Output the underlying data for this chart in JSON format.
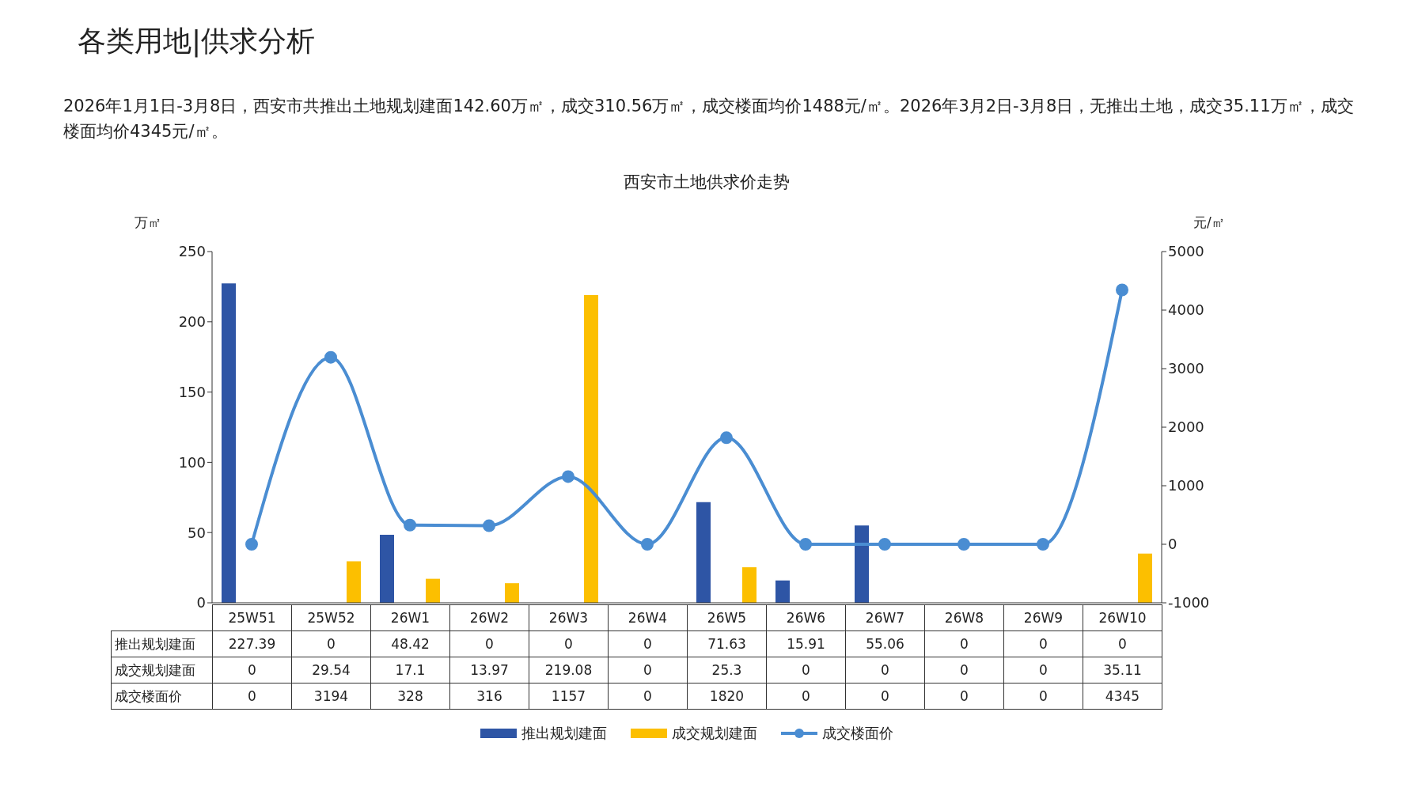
{
  "chart_data": {
    "type": "bar",
    "title": "各类用地|供求分析",
    "subtitle": "西安市土地供求价走势",
    "annotations": [
      "2026年1月1日-3月8日，西安市共推出土地规划建面142.60万㎡，成交310.56万㎡，成交楼面均价1488元/㎡。2026年3月2日-3月8日，无推出土地，成交35.11万㎡，成交楼面均价4345元/㎡。"
    ],
    "ylabel": "万㎡",
    "y2label": "元/㎡",
    "categories": [
      "25W51",
      "25W52",
      "26W1",
      "26W2",
      "26W3",
      "26W4",
      "26W5",
      "26W6",
      "26W7",
      "26W8",
      "26W9",
      "26W10"
    ],
    "series": [
      {
        "name": "推出规划建面",
        "color": "#2e55a5",
        "values": [
          227.39,
          0,
          48.42,
          0,
          0,
          0,
          71.63,
          15.91,
          55.06,
          0,
          0,
          0
        ]
      },
      {
        "name": "成交规划建面",
        "color": "#fcbf00",
        "values": [
          0,
          29.54,
          17.1,
          13.97,
          219.08,
          0,
          25.3,
          0,
          0,
          0,
          0,
          35.11
        ]
      },
      {
        "name": "成交楼面价",
        "type": "line",
        "axis": "y2",
        "color": "#4a8dd2",
        "marker": "circle",
        "values": [
          0,
          3194,
          328,
          316,
          1157,
          0,
          1820,
          0,
          0,
          0,
          0,
          4345
        ]
      }
    ],
    "ylim": [
      0,
      250
    ],
    "yticks": [
      0,
      50,
      100,
      150,
      200,
      250
    ],
    "y2lim": [
      -1000,
      5000
    ],
    "y2ticks": [
      -1000,
      0,
      1000,
      2000,
      3000,
      4000,
      5000
    ],
    "legend": "bottom",
    "data_labels": true
  }
}
